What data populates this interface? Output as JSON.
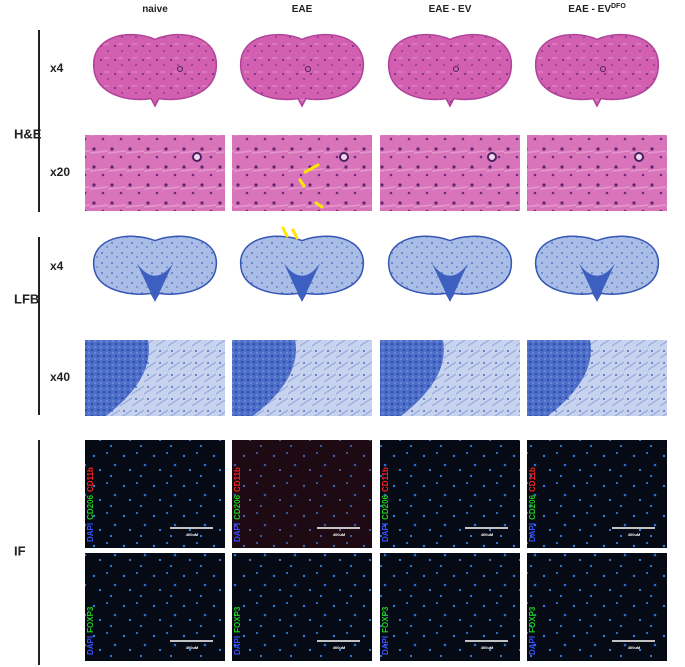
{
  "columns": [
    {
      "text": "naive"
    },
    {
      "text": "EAE"
    },
    {
      "text": "EAE - EV"
    },
    {
      "text": "EAE - EV",
      "sup": "DFO"
    }
  ],
  "sections": [
    {
      "label": "H&E",
      "rows": [
        "x4",
        "x20"
      ]
    },
    {
      "label": "LFB",
      "rows": [
        "x4",
        "x40"
      ]
    },
    {
      "label": "IF"
    }
  ],
  "if_rows": [
    [
      "DAPI",
      "CD206",
      "CD11b"
    ],
    [
      "DAPI",
      "FOXP3"
    ]
  ],
  "scale_bar": "400uM"
}
